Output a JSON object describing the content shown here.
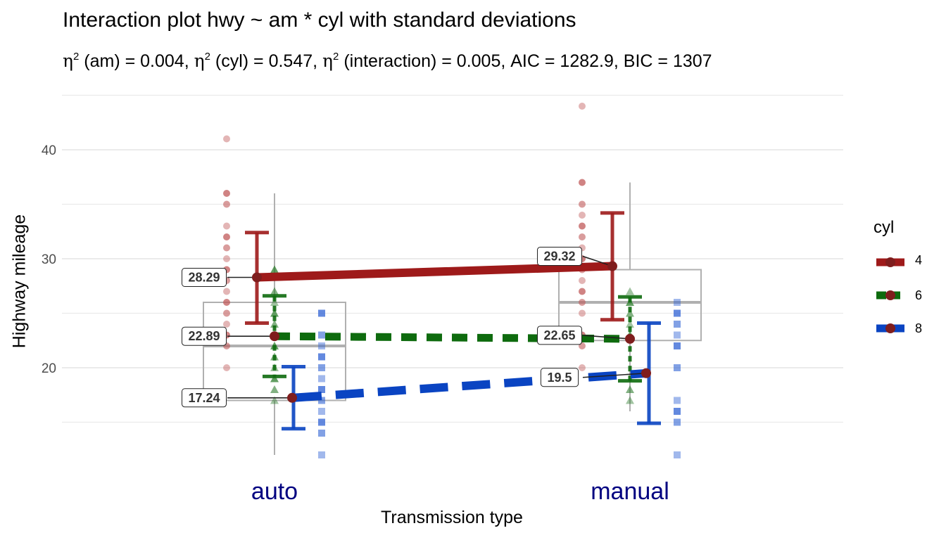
{
  "chart_data": {
    "type": "line",
    "title": "Interaction plot  hwy ~ am * cyl with standard deviations",
    "subtitle": {
      "eta_symbol": "η",
      "sq": "2",
      "term1": " (am) = 0.004, ",
      "term2": " (cyl) = 0.547, ",
      "term3": " (interaction) = 0.005, AIC = 1282.9, BIC = 1307"
    },
    "xlabel": "Transmission type",
    "ylabel": "Highway mileage",
    "categories": [
      "auto",
      "manual"
    ],
    "ylim": [
      11,
      45
    ],
    "yticks": [
      20,
      30,
      40
    ],
    "grid": true,
    "legend": {
      "title": "cyl",
      "placement": "right"
    },
    "series": [
      {
        "name": "4",
        "color": "#9E1A1A",
        "linestyle": "solid",
        "means": [
          28.29,
          29.32
        ],
        "labels": [
          "28.29",
          "29.32"
        ],
        "sd_low": [
          24.1,
          24.4
        ],
        "sd_high": [
          32.4,
          34.2
        ]
      },
      {
        "name": "6",
        "color": "#0E6B0E",
        "linestyle": "dashed",
        "means": [
          22.89,
          22.65
        ],
        "labels": [
          "22.89",
          "22.65"
        ],
        "sd_low": [
          19.2,
          18.8
        ],
        "sd_high": [
          26.6,
          26.5
        ]
      },
      {
        "name": "8",
        "color": "#0A44C2",
        "linestyle": "longdash",
        "means": [
          17.24,
          19.5
        ],
        "labels": [
          "17.24",
          "19.5"
        ],
        "sd_low": [
          14.4,
          14.9
        ],
        "sd_high": [
          20.1,
          24.1
        ]
      }
    ],
    "boxplots": [
      {
        "category": "auto",
        "min": 12,
        "q1": 17,
        "median": 22,
        "q3": 26,
        "max": 36
      },
      {
        "category": "manual",
        "min": 16,
        "q1": 22.5,
        "median": 26,
        "q3": 29,
        "max": 37
      }
    ],
    "raw_points": [
      {
        "series": "4",
        "category": "auto",
        "values": [
          20,
          22,
          23,
          24,
          25,
          26,
          27,
          28,
          29,
          30,
          31,
          32,
          33,
          35,
          36,
          41
        ]
      },
      {
        "series": "4",
        "category": "manual",
        "values": [
          20,
          22,
          23,
          25,
          26,
          27,
          28,
          29,
          30,
          31,
          32,
          33,
          34,
          35,
          37,
          44
        ]
      },
      {
        "series": "6",
        "category": "auto",
        "values": [
          17,
          18,
          19,
          20,
          21,
          22,
          23,
          24,
          25,
          26,
          27,
          29
        ]
      },
      {
        "series": "6",
        "category": "manual",
        "values": [
          17,
          18,
          23,
          24,
          25,
          26,
          27
        ]
      },
      {
        "series": "8",
        "category": "auto",
        "values": [
          12,
          14,
          15,
          16,
          17,
          18,
          19,
          20,
          21,
          22,
          23,
          25
        ]
      },
      {
        "series": "8",
        "category": "manual",
        "values": [
          12,
          15,
          16,
          17,
          20,
          22,
          23,
          24,
          25,
          26
        ]
      }
    ]
  }
}
